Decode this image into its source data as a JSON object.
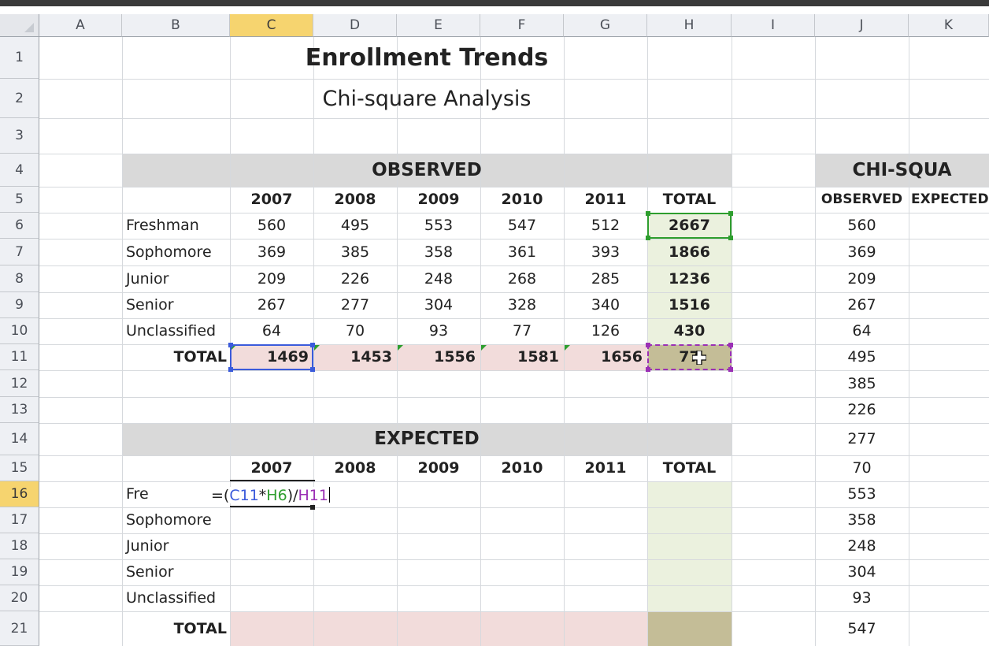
{
  "columns": [
    "A",
    "B",
    "C",
    "D",
    "E",
    "F",
    "G",
    "H",
    "I",
    "J",
    "K"
  ],
  "rows": [
    "1",
    "2",
    "3",
    "4",
    "5",
    "6",
    "7",
    "8",
    "9",
    "10",
    "11",
    "12",
    "13",
    "14",
    "15",
    "16",
    "17",
    "18",
    "19",
    "20",
    "21"
  ],
  "title": "Enrollment Trends",
  "subtitle": "Chi-square Analysis",
  "observed": {
    "header": "OBSERVED",
    "years": [
      "2007",
      "2008",
      "2009",
      "2010",
      "2011",
      "TOTAL"
    ],
    "rows": [
      {
        "label": "Freshman",
        "values": [
          "560",
          "495",
          "553",
          "547",
          "512",
          "2667"
        ]
      },
      {
        "label": "Sophomore",
        "values": [
          "369",
          "385",
          "358",
          "361",
          "393",
          "1866"
        ]
      },
      {
        "label": "Junior",
        "values": [
          "209",
          "226",
          "248",
          "268",
          "285",
          "1236"
        ]
      },
      {
        "label": "Senior",
        "values": [
          "267",
          "277",
          "304",
          "328",
          "340",
          "1516"
        ]
      },
      {
        "label": "Unclassified",
        "values": [
          "64",
          "70",
          "93",
          "77",
          "126",
          "430"
        ]
      }
    ],
    "total_label": "TOTAL",
    "totals": [
      "1469",
      "1453",
      "1556",
      "1581",
      "1656",
      "77"
    ]
  },
  "expected": {
    "header": "EXPECTED",
    "years": [
      "2007",
      "2008",
      "2009",
      "2010",
      "2011",
      "TOTAL"
    ],
    "row_labels": [
      "Fre",
      "Sophomore",
      "Junior",
      "Senior",
      "Unclassified"
    ],
    "total_label": "TOTAL",
    "formula": {
      "eq": "=(",
      "ref1": "C11",
      "op": "*",
      "ref2": "H6",
      "close": ")/",
      "ref3": "H11"
    }
  },
  "chi": {
    "header": "CHI-SQUA",
    "col1": "OBSERVED",
    "col2": "EXPECTED",
    "observed_values": [
      "560",
      "369",
      "209",
      "267",
      "64",
      "495",
      "385",
      "226",
      "277",
      "70",
      "553",
      "358",
      "248",
      "304",
      "93",
      "547"
    ]
  },
  "colors": {
    "header_gray": "#d9d9d9",
    "pink_fill": "#f2dcdb",
    "total_fill": "#ebf1de",
    "tan_fill": "#c4bd97",
    "ref_blue": "#3b5bdb",
    "ref_green": "#2e9e2e",
    "ref_purple": "#9b30b5"
  }
}
